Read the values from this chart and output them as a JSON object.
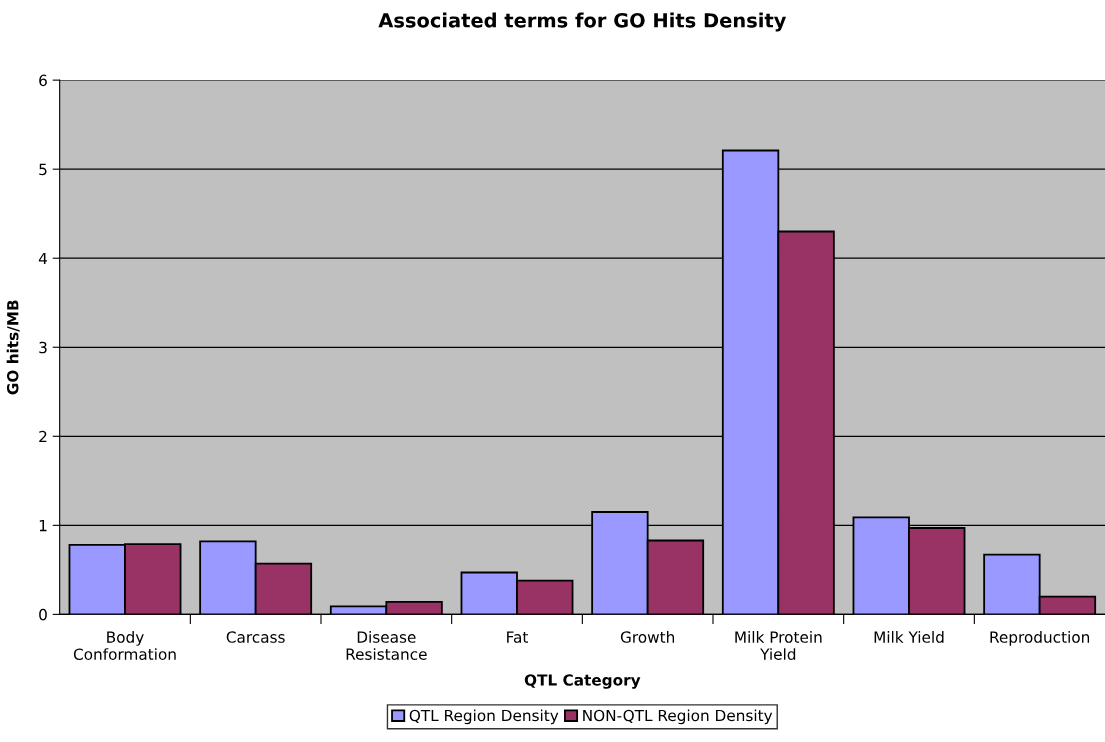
{
  "chart_data": {
    "type": "bar",
    "title": "Associated terms for GO Hits Density",
    "xlabel": "QTL Category",
    "ylabel": "GO hits/MB",
    "categories": [
      "Body\nConformation",
      "Carcass",
      "Disease\nResistance",
      "Fat",
      "Growth",
      "Milk Protein\nYield",
      "Milk Yield",
      "Reproduction"
    ],
    "series": [
      {
        "name": "QTL Region Density",
        "color": "#9999ff",
        "values": [
          0.78,
          0.82,
          0.09,
          0.47,
          1.15,
          5.21,
          1.09,
          0.67
        ]
      },
      {
        "name": "NON-QTL Region Density",
        "color": "#993366",
        "values": [
          0.79,
          0.57,
          0.14,
          0.38,
          0.83,
          4.3,
          0.97,
          0.2
        ]
      }
    ],
    "ylim": [
      0,
      6
    ],
    "yticks": [
      0,
      1,
      2,
      3,
      4,
      5,
      6
    ],
    "grid": "y",
    "legend": "bottom"
  }
}
